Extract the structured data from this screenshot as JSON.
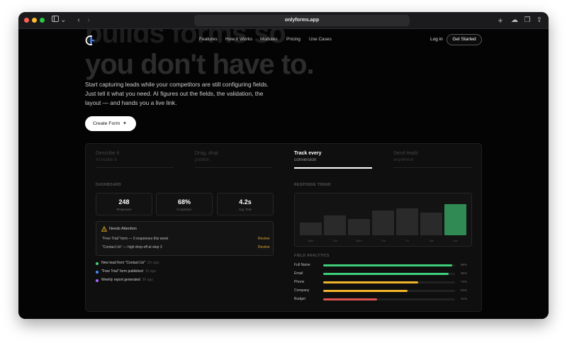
{
  "browser": {
    "url": "onlyforms.app",
    "traffic_lights": [
      "#ff5f57",
      "#febc2e",
      "#28c840"
    ]
  },
  "hero": {
    "ghost_line1": "builds forms so",
    "ghost_line2": "you don't have to.",
    "lead": "Start capturing leads while your competitors are still configuring fields. Just tell it what you need. AI figures out the fields, the validation, the layout — and hands you a live link.",
    "cta": "Create Form"
  },
  "nav": {
    "links": [
      "Features",
      "How it Works",
      "Modules",
      "Pricing",
      "Use Cases"
    ],
    "login": "Log in",
    "get_started": "Get Started"
  },
  "tabs": [
    {
      "title": "Describe it",
      "subtitle": "AI builds it"
    },
    {
      "title": "Drag, drop",
      "subtitle": "publish"
    },
    {
      "title": "Track every",
      "subtitle": "conversion"
    },
    {
      "title": "Send leads",
      "subtitle": "anywhere"
    }
  ],
  "dashboard": {
    "label": "DASHBOARD",
    "stats": [
      {
        "value": "248",
        "label": "Responses"
      },
      {
        "value": "68%",
        "label": "Completion"
      },
      {
        "value": "4.2s",
        "label": "Avg. Time"
      }
    ],
    "attention": {
      "title": "Needs Attention",
      "items": [
        {
          "text": "\"Free Trial\" form — 0 responses this week",
          "action": "Review"
        },
        {
          "text": "\"Contact Us\" — high drop-off at step 3",
          "action": "Review"
        }
      ]
    },
    "feed": [
      {
        "text": "New lead from \"Contact Us\"",
        "time": "2m ago",
        "color": "#3ecf7a"
      },
      {
        "text": "\"Free Trial\" form published",
        "time": "1h ago",
        "color": "#4a8cff"
      },
      {
        "text": "Weekly report generated",
        "time": "3h ago",
        "color": "#a46bff"
      }
    ]
  },
  "trend": {
    "label": "RESPONSE TREND",
    "days": [
      "Mon",
      "Tue",
      "Wed",
      "Thu",
      "Fri",
      "Sat",
      "Sun"
    ],
    "values": [
      30,
      45,
      38,
      58,
      62,
      52,
      72
    ],
    "highlight_color": "#2f8a54"
  },
  "field_analytics": {
    "label": "FIELD ANALYTICS",
    "fields": [
      {
        "name": "Full Name",
        "pct": 98,
        "color": "#3ecf7a"
      },
      {
        "name": "Email",
        "pct": 95,
        "color": "#3ecf7a"
      },
      {
        "name": "Phone",
        "pct": 72,
        "color": "#f0b429"
      },
      {
        "name": "Company",
        "pct": 64,
        "color": "#f0b429"
      },
      {
        "name": "Budget",
        "pct": 41,
        "color": "#d9534f"
      }
    ]
  }
}
